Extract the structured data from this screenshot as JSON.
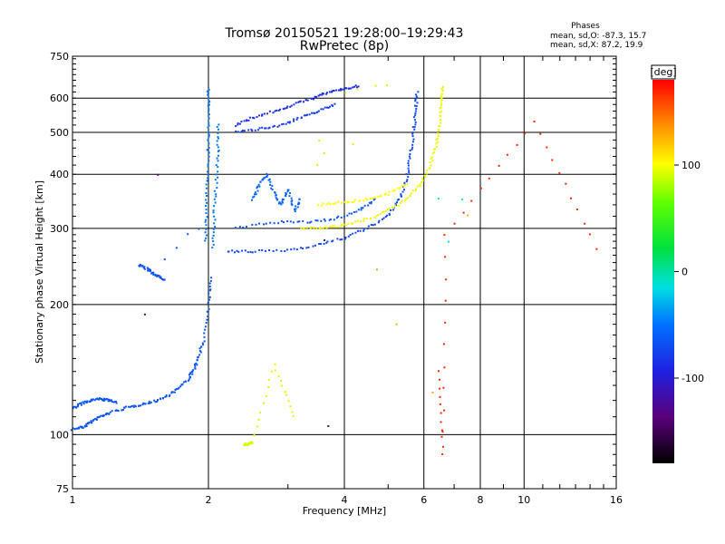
{
  "chart_data": {
    "type": "scatter",
    "title": "Tromsø 20150521 19:28:00–19:29:43",
    "subtitle": "RwPretec (8p)",
    "xlabel": "Frequency [MHz]",
    "ylabel": "Stationary phase Virtual Height [km]",
    "x_scale": "log",
    "y_scale": "log",
    "xlim": [
      1,
      16
    ],
    "ylim": [
      75,
      750
    ],
    "x_ticks": [
      1,
      2,
      4,
      6,
      8,
      10,
      16
    ],
    "y_ticks": [
      75,
      100,
      200,
      300,
      400,
      500,
      600,
      750
    ],
    "grid": true,
    "phase_info": {
      "heading": "Phases",
      "line_o": "mean, sd,O: -87.3, 15.7",
      "line_x": "mean, sd,X:  87.2, 19.9"
    },
    "colorbar": {
      "label": "[deg]",
      "range": [
        -180,
        180
      ],
      "ticks": [
        100,
        0,
        -100
      ]
    },
    "traces": [
      {
        "name": "o-low",
        "phase": -100,
        "points": [
          [
            1.0,
            103
          ],
          [
            1.05,
            104
          ],
          [
            1.1,
            107
          ],
          [
            1.15,
            110
          ],
          [
            1.2,
            112
          ],
          [
            1.3,
            115
          ],
          [
            1.4,
            117
          ],
          [
            1.5,
            119
          ],
          [
            1.6,
            122
          ],
          [
            1.7,
            127
          ],
          [
            1.8,
            134
          ],
          [
            1.85,
            140
          ],
          [
            1.9,
            150
          ],
          [
            1.95,
            165
          ],
          [
            2.0,
            200
          ],
          [
            2.02,
            230
          ]
        ]
      },
      {
        "name": "o-upper-low",
        "phase": -100,
        "points": [
          [
            1.0,
            115
          ],
          [
            1.05,
            118
          ],
          [
            1.1,
            120
          ],
          [
            1.15,
            121
          ],
          [
            1.2,
            120
          ],
          [
            1.25,
            119
          ]
        ]
      },
      {
        "name": "o-mid",
        "phase": -100,
        "points": [
          [
            1.4,
            247
          ],
          [
            1.45,
            243
          ],
          [
            1.5,
            237
          ],
          [
            1.55,
            232
          ],
          [
            1.6,
            228
          ]
        ]
      },
      {
        "name": "o-mid2",
        "phase": -100,
        "points": [
          [
            1.6,
            255
          ],
          [
            1.7,
            270
          ],
          [
            1.8,
            290
          ],
          [
            1.9,
            300
          ]
        ]
      },
      {
        "name": "o-vertical",
        "phase": -90,
        "points": [
          [
            1.97,
            280
          ],
          [
            1.98,
            330
          ],
          [
            1.99,
            400
          ],
          [
            2.0,
            480
          ],
          [
            2.0,
            560
          ],
          [
            2.0,
            630
          ]
        ]
      },
      {
        "name": "o-vertical2",
        "phase": -85,
        "points": [
          [
            2.05,
            270
          ],
          [
            2.06,
            320
          ],
          [
            2.08,
            380
          ],
          [
            2.1,
            450
          ],
          [
            2.1,
            520
          ]
        ]
      },
      {
        "name": "o-F",
        "phase": -105,
        "points": [
          [
            2.2,
            265
          ],
          [
            2.5,
            265
          ],
          [
            3.0,
            267
          ],
          [
            3.5,
            275
          ],
          [
            4.0,
            285
          ],
          [
            4.5,
            300
          ],
          [
            5.0,
            320
          ],
          [
            5.3,
            350
          ],
          [
            5.5,
            390
          ],
          [
            5.6,
            440
          ],
          [
            5.7,
            500
          ],
          [
            5.75,
            560
          ],
          [
            5.8,
            620
          ]
        ]
      },
      {
        "name": "o-F2",
        "phase": -100,
        "points": [
          [
            2.3,
            300
          ],
          [
            2.8,
            310
          ],
          [
            3.3,
            310
          ],
          [
            3.8,
            315
          ],
          [
            4.3,
            330
          ],
          [
            4.7,
            350
          ]
        ]
      },
      {
        "name": "o-top",
        "phase": -115,
        "points": [
          [
            2.3,
            520
          ],
          [
            2.5,
            540
          ],
          [
            2.8,
            560
          ],
          [
            3.1,
            580
          ],
          [
            3.4,
            600
          ],
          [
            3.7,
            620
          ],
          [
            4.0,
            630
          ],
          [
            4.3,
            640
          ]
        ]
      },
      {
        "name": "o-top2",
        "phase": -110,
        "points": [
          [
            2.3,
            500
          ],
          [
            2.6,
            510
          ],
          [
            2.9,
            520
          ],
          [
            3.2,
            540
          ],
          [
            3.5,
            560
          ],
          [
            3.8,
            580
          ]
        ]
      },
      {
        "name": "o-spread",
        "phase": -95,
        "points": [
          [
            2.5,
            350
          ],
          [
            2.6,
            380
          ],
          [
            2.7,
            400
          ],
          [
            2.8,
            360
          ],
          [
            2.9,
            340
          ],
          [
            3.0,
            370
          ],
          [
            3.1,
            330
          ],
          [
            3.2,
            350
          ]
        ]
      },
      {
        "name": "x-F",
        "phase": 95,
        "points": [
          [
            3.2,
            300
          ],
          [
            3.6,
            300
          ],
          [
            4.0,
            305
          ],
          [
            4.5,
            315
          ],
          [
            5.0,
            330
          ],
          [
            5.5,
            350
          ],
          [
            5.9,
            380
          ],
          [
            6.2,
            420
          ],
          [
            6.4,
            470
          ],
          [
            6.5,
            520
          ],
          [
            6.55,
            580
          ],
          [
            6.6,
            640
          ]
        ]
      },
      {
        "name": "x-F2",
        "phase": 100,
        "points": [
          [
            3.5,
            340
          ],
          [
            4.0,
            345
          ],
          [
            4.5,
            350
          ],
          [
            5.0,
            360
          ],
          [
            5.5,
            380
          ]
        ]
      },
      {
        "name": "x-top",
        "phase": 90,
        "points": [
          [
            4.0,
            620
          ],
          [
            4.3,
            630
          ],
          [
            4.7,
            640
          ],
          [
            5.0,
            645
          ]
        ]
      },
      {
        "name": "x-cluster",
        "phase": 110,
        "points": [
          [
            3.5,
            420
          ],
          [
            3.6,
            450
          ],
          [
            3.5,
            480
          ],
          [
            4.2,
            470
          ]
        ]
      },
      {
        "name": "misc-low",
        "phase": 90,
        "points": [
          [
            2.4,
            95
          ],
          [
            2.45,
            95
          ],
          [
            2.5,
            96
          ],
          [
            2.8,
            145
          ],
          [
            3.1,
            110
          ]
        ]
      },
      {
        "name": "misc-red",
        "phase": 170,
        "points": [
          [
            6.5,
            140
          ],
          [
            6.6,
            90
          ],
          [
            6.7,
            290
          ],
          [
            10.5,
            530
          ],
          [
            14.5,
            270
          ]
        ]
      },
      {
        "name": "misc-dark",
        "phase": -150,
        "points": [
          [
            1.55,
            400
          ],
          [
            1.45,
            190
          ],
          [
            3.7,
            105
          ],
          [
            3.6,
            280
          ]
        ]
      },
      {
        "name": "misc-orange",
        "phase": 130,
        "points": [
          [
            4.7,
            240
          ],
          [
            5.2,
            180
          ],
          [
            6.3,
            125
          ],
          [
            7.5,
            320
          ]
        ]
      },
      {
        "name": "misc-cyan",
        "phase": -30,
        "points": [
          [
            6.8,
            280
          ],
          [
            6.5,
            350
          ],
          [
            7.3,
            350
          ]
        ]
      }
    ]
  }
}
